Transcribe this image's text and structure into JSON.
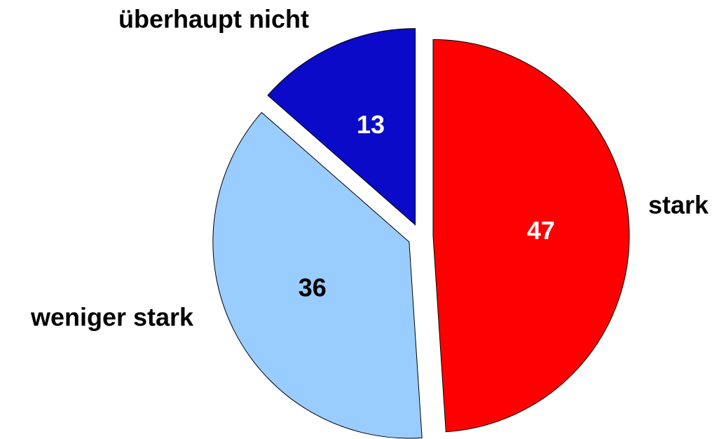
{
  "chart_data": {
    "type": "pie",
    "categories": [
      "stark",
      "weniger stark",
      "überhaupt nicht"
    ],
    "values": [
      47,
      36,
      13
    ],
    "colors": [
      "#ff0000",
      "#99ccff",
      "#0a0ac8"
    ],
    "label_colors": [
      "#ffffff",
      "#000000",
      "#ffffff"
    ]
  }
}
